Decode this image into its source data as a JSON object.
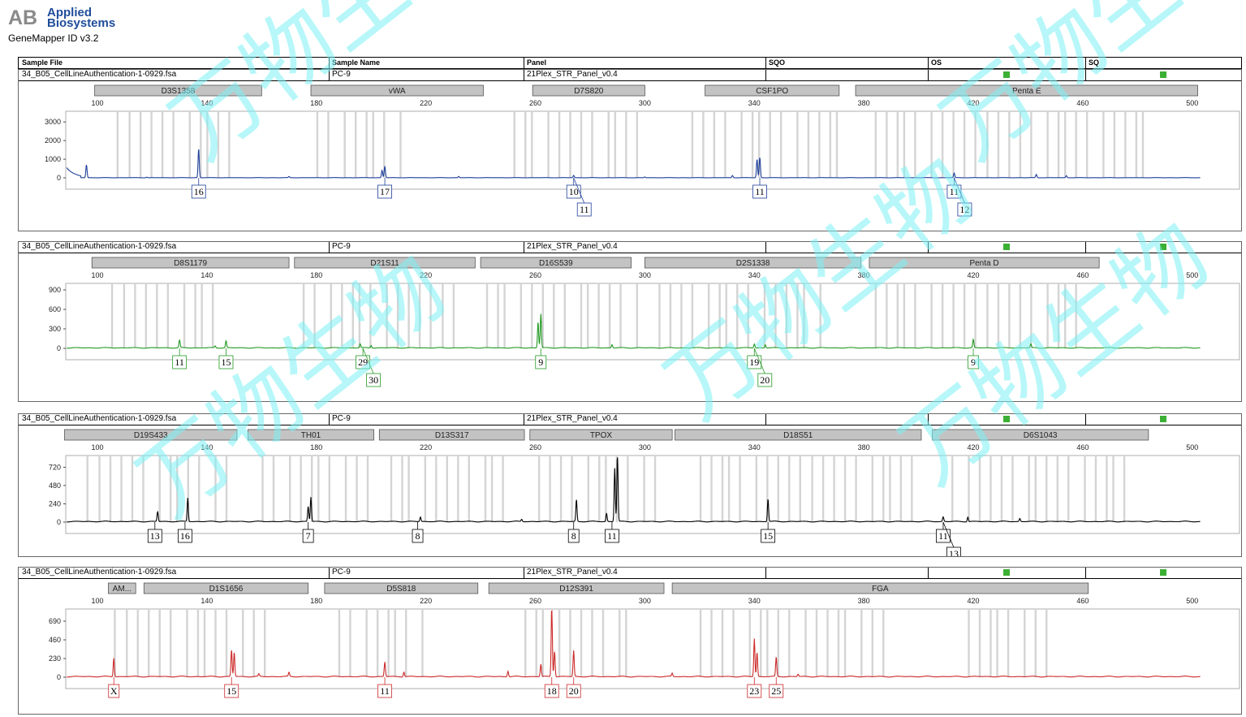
{
  "brand": {
    "line1": "Applied",
    "line2": "Biosystems"
  },
  "app_title": "GeneMapper ID v3.2",
  "columns": [
    "Sample File",
    "Sample Name",
    "Panel",
    "SQO",
    "OS",
    "SQ"
  ],
  "watermark_text": "万物生物",
  "colors": {
    "blue": "#1f3f99",
    "green": "#239a23",
    "black": "#000000",
    "red": "#cc2a2a",
    "bin": "#d4d4d4",
    "marker": "#c3c3c3",
    "quality_ok": "#3cb034",
    "watermark": "#7cf0f4"
  },
  "chart_data": [
    {
      "type": "line",
      "dye": "blue",
      "sample_file": "34_B05_CellLineAuthentication-1-0929.fsa",
      "sample_name": "PC-9",
      "panel": "21Plex_STR_Panel_v0.4",
      "x_ticks": [
        100,
        140,
        180,
        220,
        260,
        300,
        340,
        380,
        420,
        460,
        500
      ],
      "y_ticks": [
        "0",
        "1000",
        "2000",
        "3000"
      ],
      "y_max": 3400,
      "markers": [
        {
          "name": "D3S1358",
          "start": 99,
          "end": 160
        },
        {
          "name": "vWA",
          "start": 178,
          "end": 241
        },
        {
          "name": "D7S820",
          "start": 259,
          "end": 300
        },
        {
          "name": "CSF1PO",
          "start": 322,
          "end": 371
        },
        {
          "name": "Penta E",
          "start": 377,
          "end": 502
        }
      ],
      "bin_groups": [
        [
          107,
          153
        ],
        [
          180,
          212
        ],
        [
          252,
          300
        ],
        [
          317,
          374
        ],
        [
          384,
          486
        ]
      ],
      "peaks": [
        [
          96,
          700
        ],
        [
          137,
          1560
        ],
        [
          205,
          620
        ],
        [
          204,
          400
        ],
        [
          170,
          60
        ],
        [
          232,
          70
        ],
        [
          274,
          120
        ],
        [
          332,
          120
        ],
        [
          342,
          1100
        ],
        [
          341,
          1000
        ],
        [
          413,
          250
        ],
        [
          443,
          180
        ],
        [
          454,
          110
        ],
        [
          118,
          30
        ],
        [
          300,
          40
        ]
      ],
      "alleles": [
        {
          "pos": 137,
          "labels": [
            "16"
          ]
        },
        {
          "pos": 205,
          "labels": [
            "17"
          ]
        },
        {
          "pos": 274,
          "labels": [
            "10",
            "11"
          ]
        },
        {
          "pos": 342,
          "labels": [
            "11"
          ]
        },
        {
          "pos": 413,
          "labels": [
            "11",
            "12"
          ]
        }
      ]
    },
    {
      "type": "line",
      "dye": "green",
      "sample_file": "34_B05_CellLineAuthentication-1-0929.fsa",
      "sample_name": "PC-9",
      "panel": "21Plex_STR_Panel_v0.4",
      "x_ticks": [
        100,
        140,
        180,
        220,
        260,
        300,
        340,
        380,
        420,
        460,
        500
      ],
      "y_ticks": [
        "0",
        "300",
        "600",
        "900"
      ],
      "y_max": 950,
      "markers": [
        {
          "name": "D8S1179",
          "start": 98,
          "end": 170
        },
        {
          "name": "D21S11",
          "start": 172,
          "end": 238
        },
        {
          "name": "D16S539",
          "start": 240,
          "end": 295
        },
        {
          "name": "D2S1338",
          "start": 300,
          "end": 379
        },
        {
          "name": "Penta D",
          "start": 382,
          "end": 466
        }
      ],
      "bin_groups": [
        [
          105,
          145
        ],
        [
          175,
          230
        ],
        [
          242,
          300
        ],
        [
          305,
          366
        ],
        [
          384,
          460
        ]
      ],
      "peaks": [
        [
          130,
          120
        ],
        [
          147,
          110
        ],
        [
          143,
          30
        ],
        [
          196,
          60
        ],
        [
          200,
          40
        ],
        [
          262,
          520
        ],
        [
          261,
          400
        ],
        [
          288,
          50
        ],
        [
          340,
          60
        ],
        [
          344,
          50
        ],
        [
          420,
          130
        ],
        [
          441,
          60
        ]
      ],
      "alleles": [
        {
          "pos": 130,
          "labels": [
            "11"
          ]
        },
        {
          "pos": 147,
          "labels": [
            "15"
          ]
        },
        {
          "pos": 197,
          "labels": [
            "29",
            "30"
          ]
        },
        {
          "pos": 262,
          "labels": [
            "9"
          ]
        },
        {
          "pos": 340,
          "labels": [
            "19",
            "20"
          ]
        },
        {
          "pos": 420,
          "labels": [
            "9"
          ]
        }
      ]
    },
    {
      "type": "line",
      "dye": "black",
      "sample_file": "34_B05_CellLineAuthentication-1-0929.fsa",
      "sample_name": "PC-9",
      "panel": "21Plex_STR_Panel_v0.4",
      "x_ticks": [
        100,
        140,
        180,
        220,
        260,
        300,
        340,
        380,
        420,
        460,
        500
      ],
      "y_ticks": [
        "0",
        "240",
        "480",
        "720"
      ],
      "y_max": 830,
      "markers": [
        {
          "name": "D19S433",
          "start": 88,
          "end": 151
        },
        {
          "name": "TH01",
          "start": 155,
          "end": 201
        },
        {
          "name": "D13S317",
          "start": 203,
          "end": 256
        },
        {
          "name": "TPOX",
          "start": 258,
          "end": 310
        },
        {
          "name": "D18S51",
          "start": 311,
          "end": 401
        },
        {
          "name": "D6S1043",
          "start": 405,
          "end": 484
        }
      ],
      "bin_groups": [
        [
          96,
          150
        ],
        [
          160,
          200
        ],
        [
          207,
          250
        ],
        [
          261,
          306
        ],
        [
          320,
          402
        ],
        [
          412,
          480
        ]
      ],
      "peaks": [
        [
          122,
          130
        ],
        [
          133,
          310
        ],
        [
          178,
          320
        ],
        [
          177,
          200
        ],
        [
          218,
          60
        ],
        [
          275,
          290
        ],
        [
          286,
          110
        ],
        [
          290,
          900
        ],
        [
          289,
          700
        ],
        [
          345,
          300
        ],
        [
          409,
          60
        ],
        [
          418,
          60
        ],
        [
          437,
          40
        ],
        [
          255,
          30
        ]
      ],
      "alleles": [
        {
          "pos": 121,
          "labels": [
            "13"
          ]
        },
        {
          "pos": 132,
          "labels": [
            "16"
          ]
        },
        {
          "pos": 177,
          "labels": [
            "7"
          ]
        },
        {
          "pos": 217,
          "labels": [
            "8"
          ]
        },
        {
          "pos": 274,
          "labels": [
            "8"
          ]
        },
        {
          "pos": 288,
          "labels": [
            "11"
          ]
        },
        {
          "pos": 345,
          "labels": [
            "15"
          ]
        },
        {
          "pos": 409,
          "labels": [
            "11",
            "13"
          ]
        }
      ]
    },
    {
      "type": "line",
      "dye": "red",
      "sample_file": "34_B05_CellLineAuthentication-1-0929.fsa",
      "sample_name": "PC-9",
      "panel": "21Plex_STR_Panel_v0.4",
      "x_ticks": [
        100,
        140,
        180,
        220,
        260,
        300,
        340,
        380,
        420,
        460,
        500
      ],
      "y_ticks": [
        "0",
        "230",
        "460",
        "690"
      ],
      "y_max": 800,
      "markers": [
        {
          "name": "AM...",
          "start": 104,
          "end": 114
        },
        {
          "name": "D1S1656",
          "start": 117,
          "end": 177
        },
        {
          "name": "D5S818",
          "start": 183,
          "end": 239
        },
        {
          "name": "D12S391",
          "start": 243,
          "end": 307
        },
        {
          "name": "FGA",
          "start": 310,
          "end": 462
        }
      ],
      "bin_groups": [
        [
          106,
          162
        ],
        [
          188,
          222
        ],
        [
          256,
          296
        ],
        [
          320,
          389
        ],
        [
          418,
          448
        ]
      ],
      "peaks": [
        [
          106,
          230
        ],
        [
          149,
          330
        ],
        [
          150,
          300
        ],
        [
          159,
          30
        ],
        [
          170,
          50
        ],
        [
          205,
          180
        ],
        [
          212,
          60
        ],
        [
          250,
          70
        ],
        [
          262,
          150
        ],
        [
          266,
          900
        ],
        [
          267,
          320
        ],
        [
          274,
          320
        ],
        [
          340,
          470
        ],
        [
          341,
          300
        ],
        [
          348,
          240
        ],
        [
          310,
          40
        ],
        [
          356,
          30
        ]
      ],
      "alleles": [
        {
          "pos": 106,
          "labels": [
            "X"
          ]
        },
        {
          "pos": 149,
          "labels": [
            "15"
          ]
        },
        {
          "pos": 205,
          "labels": [
            "11"
          ]
        },
        {
          "pos": 266,
          "labels": [
            "18"
          ]
        },
        {
          "pos": 274,
          "labels": [
            "20"
          ]
        },
        {
          "pos": 340,
          "labels": [
            "23"
          ]
        },
        {
          "pos": 348,
          "labels": [
            "25"
          ]
        }
      ]
    }
  ]
}
